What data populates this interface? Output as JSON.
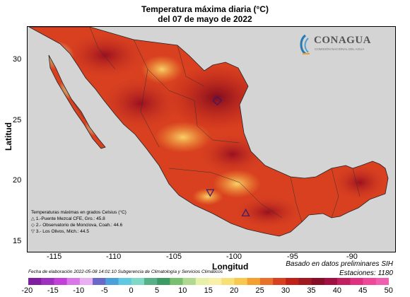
{
  "title_line1": "Temperatura máxima diaria (°C)",
  "title_line2": "del 07 de mayo de 2022",
  "axes": {
    "xlabel": "Longitud",
    "ylabel": "Latitud",
    "xticks": [
      "-115",
      "-110",
      "-105",
      "-100",
      "-95",
      "-90"
    ],
    "yticks": [
      "30",
      "25",
      "20",
      "15"
    ]
  },
  "logo": {
    "name": "CONAGUA",
    "subtitle": "COMISIÓN NACIONAL DEL AGUA"
  },
  "legend": {
    "heading": "Temperaturas máximas en grados Celsius (°C)",
    "items": [
      {
        "symbol": "△",
        "text": "1.-Puente Mezcal CFE, Gro.: 45.8"
      },
      {
        "symbol": "◇",
        "text": "2.- Observatorio de Monclova, Coah.: 44.6"
      },
      {
        "symbol": "▽",
        "text": "3.- Los Olivos, Mich.: 44.5"
      }
    ]
  },
  "notes": {
    "source": "Basado en datos preliminares SIH",
    "stations": "Estaciones:  1180",
    "date": "Fecha de elaboración 2022-05-08 14:01:10 Subgerencia de Climatología y Servicios Climáticos"
  },
  "colorbar": {
    "ticks": [
      "-20",
      "-15",
      "-10",
      "-5",
      "0",
      "5",
      "10",
      "15",
      "20",
      "25",
      "30",
      "35",
      "40",
      "45",
      "50"
    ],
    "colors": [
      "#7e1fa0",
      "#9e30c0",
      "#c040d8",
      "#d878e8",
      "#e8b0f0",
      "#6868c8",
      "#4aa0d8",
      "#60c8e0",
      "#80d8c8",
      "#58b088",
      "#3c9a64",
      "#78c070",
      "#b0d890",
      "#e8f0a8",
      "#f8f0a8",
      "#f8e078",
      "#f8c850",
      "#f4a030",
      "#e87028",
      "#d84020",
      "#c02018",
      "#a01820",
      "#880e28",
      "#a01040",
      "#c02060",
      "#e03080",
      "#f04898",
      "#f060b0"
    ]
  },
  "stations_marked": [
    {
      "id": "1",
      "symbol": "triangle-up",
      "lon": -99.0,
      "lat": 17.6
    },
    {
      "id": "2",
      "symbol": "diamond",
      "lon": -101.4,
      "lat": 26.9
    },
    {
      "id": "3",
      "symbol": "triangle-down",
      "lon": -102.0,
      "lat": 19.3
    }
  ]
}
